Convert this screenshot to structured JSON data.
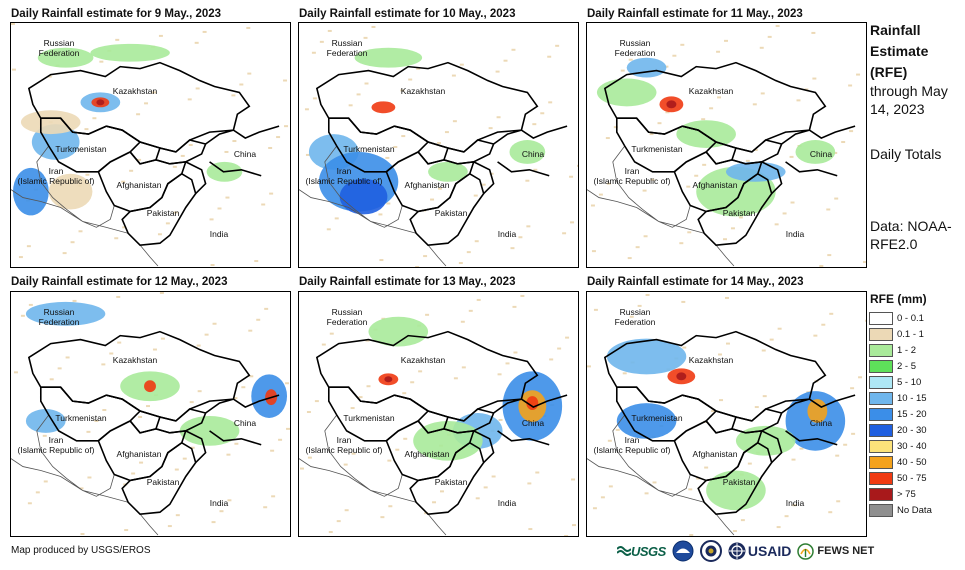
{
  "panels": [
    {
      "title": "Daily Rainfall estimate for 9 May., 2023"
    },
    {
      "title": "Daily Rainfall estimate for 10 May., 2023"
    },
    {
      "title": "Daily Rainfall estimate for 11 May., 2023"
    },
    {
      "title": "Daily Rainfall estimate for 12 May., 2023"
    },
    {
      "title": "Daily Rainfall estimate for 13 May., 2023"
    },
    {
      "title": "Daily Rainfall estimate for 14 May., 2023"
    }
  ],
  "country_labels": {
    "russia": "Russian\nFederation",
    "kazakhstan": "Kazakhstan",
    "turkmenistan": "Turkmenistan",
    "iran": "Iran\n(Islamic Republic of)",
    "afghanistan": "Afghanistan",
    "pakistan": "Pakistan",
    "china": "China",
    "india": "India"
  },
  "sidebar": {
    "title": "Rainfall Estimate (RFE)",
    "through": "through May 14, 2023",
    "totals": "Daily Totals",
    "source": "Data: NOAA-RFE2.0"
  },
  "legend": {
    "title": "RFE (mm)",
    "items": [
      {
        "label": "0 - 0.1",
        "color": "#ffffff"
      },
      {
        "label": "0.1 - 1",
        "color": "#ecd9b6"
      },
      {
        "label": "1 - 2",
        "color": "#a9ea9a"
      },
      {
        "label": "2 - 5",
        "color": "#5ee05a"
      },
      {
        "label": "5 - 10",
        "color": "#aee8f5"
      },
      {
        "label": "10 - 15",
        "color": "#6fb6ec"
      },
      {
        "label": "15 - 20",
        "color": "#3b8ee8"
      },
      {
        "label": "20 - 30",
        "color": "#1f5fe0"
      },
      {
        "label": "30 - 40",
        "color": "#fbe27a"
      },
      {
        "label": "40 - 50",
        "color": "#f4a21c"
      },
      {
        "label": "50 - 75",
        "color": "#f03a12"
      },
      {
        "label": "> 75",
        "color": "#a8191b"
      },
      {
        "label": "No Data",
        "color": "#8f8f8f"
      }
    ]
  },
  "footer": {
    "credit": "Map produced by USGS/EROS",
    "logos": [
      "USGS",
      "NOAA",
      "DOS",
      "USAID",
      "FEWS NET"
    ]
  }
}
